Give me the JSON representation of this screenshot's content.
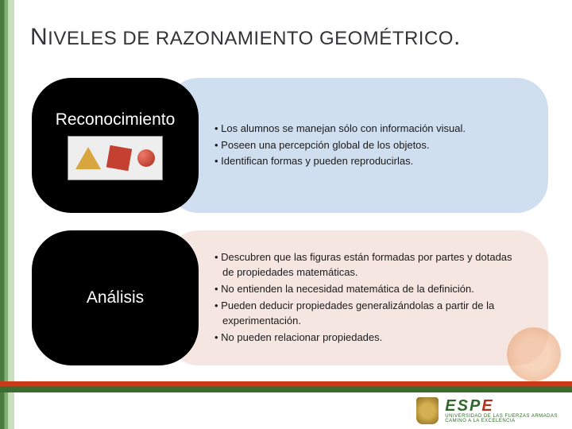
{
  "title": {
    "cap1": "N",
    "rest1": "IVELES DE RAZONAMIENTO GEOMÉTRICO",
    "dot": "."
  },
  "row1": {
    "label": "Reconocimiento",
    "bullets": [
      "• Los alumnos se manejan sólo con información visual.",
      "• Poseen una percepción global de los objetos.",
      "• Identifican formas y pueden reproducirlas."
    ]
  },
  "row2": {
    "label": "Análisis",
    "bullets": [
      "• Descubren que las figuras están formadas por partes y dotadas de propiedades matemáticas.",
      "• No entienden la necesidad matemática de la definición.",
      "• Pueden deducir propiedades generalizándolas a partir de la experimentación.",
      "• No pueden relacionar propiedades."
    ]
  },
  "logo": {
    "main_green": "ESP",
    "main_red": "E",
    "sub": "UNIVERSIDAD DE LAS FUERZAS ARMADAS",
    "tagline": "CAMINO A LA EXCELENCIA"
  },
  "colors": {
    "desc1_bg": "#d0dff0",
    "desc2_bg": "#f6e6e1",
    "pill_bg": "#000000"
  }
}
